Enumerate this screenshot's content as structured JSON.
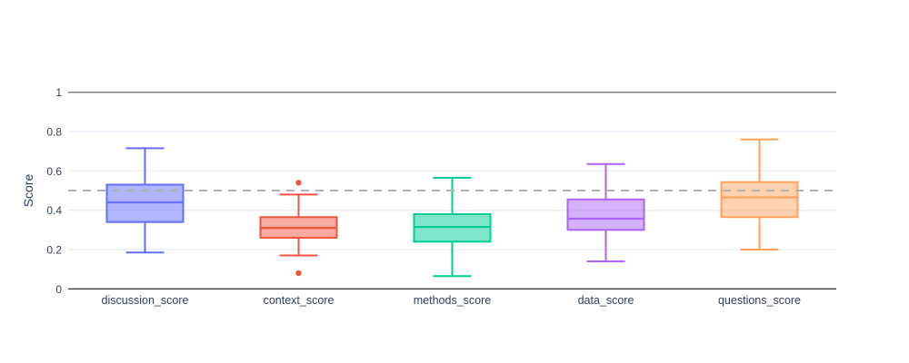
{
  "chart_data": {
    "type": "box",
    "title": "",
    "xlabel": "",
    "ylabel": "Score",
    "grid": true,
    "background": "#ffffff",
    "text_color": "#2A3F5F",
    "gridline_color": "#E8EEF7",
    "axis_line_color": "#404040",
    "y_axis": {
      "ticks": [
        0,
        0.2,
        0.4,
        0.6,
        0.8,
        1
      ],
      "tick_labels": [
        "0",
        "0.2",
        "0.4",
        "0.6",
        "0.8",
        "1"
      ],
      "range": [
        0,
        1.08
      ]
    },
    "categories": [
      "discussion_score",
      "context_score",
      "methods_score",
      "data_score",
      "questions_score"
    ],
    "series": [
      {
        "name": "discussion_score",
        "color": "#636EFA",
        "lower_whisker": 0.185,
        "q1": 0.34,
        "median": 0.44,
        "q3": 0.53,
        "upper_whisker": 0.715,
        "outliers": []
      },
      {
        "name": "context_score",
        "color": "#EF553B",
        "lower_whisker": 0.17,
        "q1": 0.26,
        "median": 0.31,
        "q3": 0.365,
        "upper_whisker": 0.48,
        "outliers": [
          0.54,
          0.08
        ]
      },
      {
        "name": "methods_score",
        "color": "#00CC96",
        "lower_whisker": 0.065,
        "q1": 0.24,
        "median": 0.315,
        "q3": 0.38,
        "upper_whisker": 0.565,
        "outliers": []
      },
      {
        "name": "data_score",
        "color": "#AB63FA",
        "lower_whisker": 0.14,
        "q1": 0.3,
        "median": 0.357,
        "q3": 0.455,
        "upper_whisker": 0.635,
        "outliers": []
      },
      {
        "name": "questions_score",
        "color": "#FFA15A",
        "lower_whisker": 0.2,
        "q1": 0.365,
        "median": 0.465,
        "q3": 0.543,
        "upper_whisker": 0.76,
        "outliers": []
      }
    ],
    "reference_lines": [
      {
        "value": 1.0,
        "style": "solid",
        "color": "#777777",
        "name": "max-score-line"
      },
      {
        "value": 0.5,
        "style": "dashed",
        "color": "#B3B3B3",
        "name": "threshold-line"
      }
    ],
    "legend": "none"
  }
}
